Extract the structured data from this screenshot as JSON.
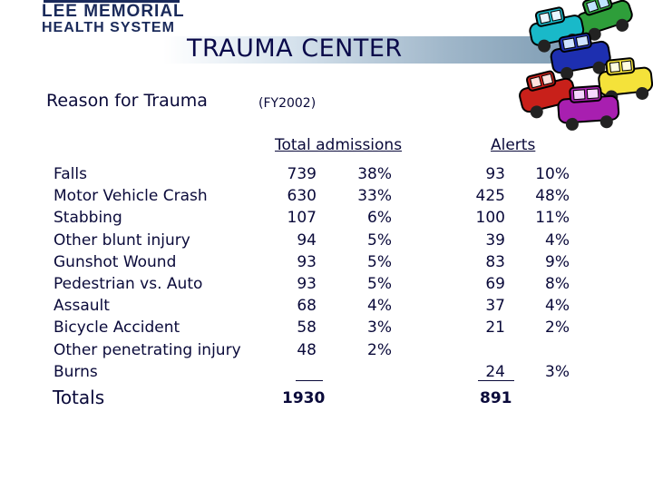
{
  "logo": {
    "line1": "LEE MEMORIAL",
    "line2": "HEALTH SYSTEM"
  },
  "title": "TRAUMA CENTER",
  "subtitle": "Reason for Trauma",
  "fiscal_year": "(FY2002)",
  "headers": {
    "total": "Total admissions",
    "alerts": "Alerts"
  },
  "rows": [
    {
      "category": "Falls",
      "admissions": "739",
      "admissions_pct": "38%",
      "alerts": "93",
      "alerts_pct": "10%"
    },
    {
      "category": "Motor Vehicle Crash",
      "admissions": "630",
      "admissions_pct": "33%",
      "alerts": "425",
      "alerts_pct": "48%"
    },
    {
      "category": "Stabbing",
      "admissions": "107",
      "admissions_pct": "6%",
      "alerts": "100",
      "alerts_pct": "11%"
    },
    {
      "category": "Other blunt injury",
      "admissions": "94",
      "admissions_pct": "5%",
      "alerts": "39",
      "alerts_pct": "4%"
    },
    {
      "category": "Gunshot Wound",
      "admissions": "93",
      "admissions_pct": "5%",
      "alerts": "83",
      "alerts_pct": "9%"
    },
    {
      "category": "Pedestrian vs. Auto",
      "admissions": "93",
      "admissions_pct": "5%",
      "alerts": "69",
      "alerts_pct": "8%"
    },
    {
      "category": "Assault",
      "admissions": "68",
      "admissions_pct": "4%",
      "alerts": "37",
      "alerts_pct": "4%"
    },
    {
      "category": "Bicycle Accident",
      "admissions": "58",
      "admissions_pct": "3%",
      "alerts": "21",
      "alerts_pct": "2%"
    },
    {
      "category": "Other penetrating injury",
      "admissions": "48",
      "admissions_pct": "2%",
      "alerts": "",
      "alerts_pct": ""
    },
    {
      "category": "Burns",
      "admissions": "",
      "admissions_pct": "",
      "alerts": "24",
      "alerts_pct": "3%"
    }
  ],
  "totals": {
    "label": "Totals",
    "admissions": "1930",
    "alerts": "891"
  },
  "colors": {
    "text": "#0a0a3a",
    "title_band": "#9fb6c9"
  },
  "clipart": "cars-traffic-jam"
}
